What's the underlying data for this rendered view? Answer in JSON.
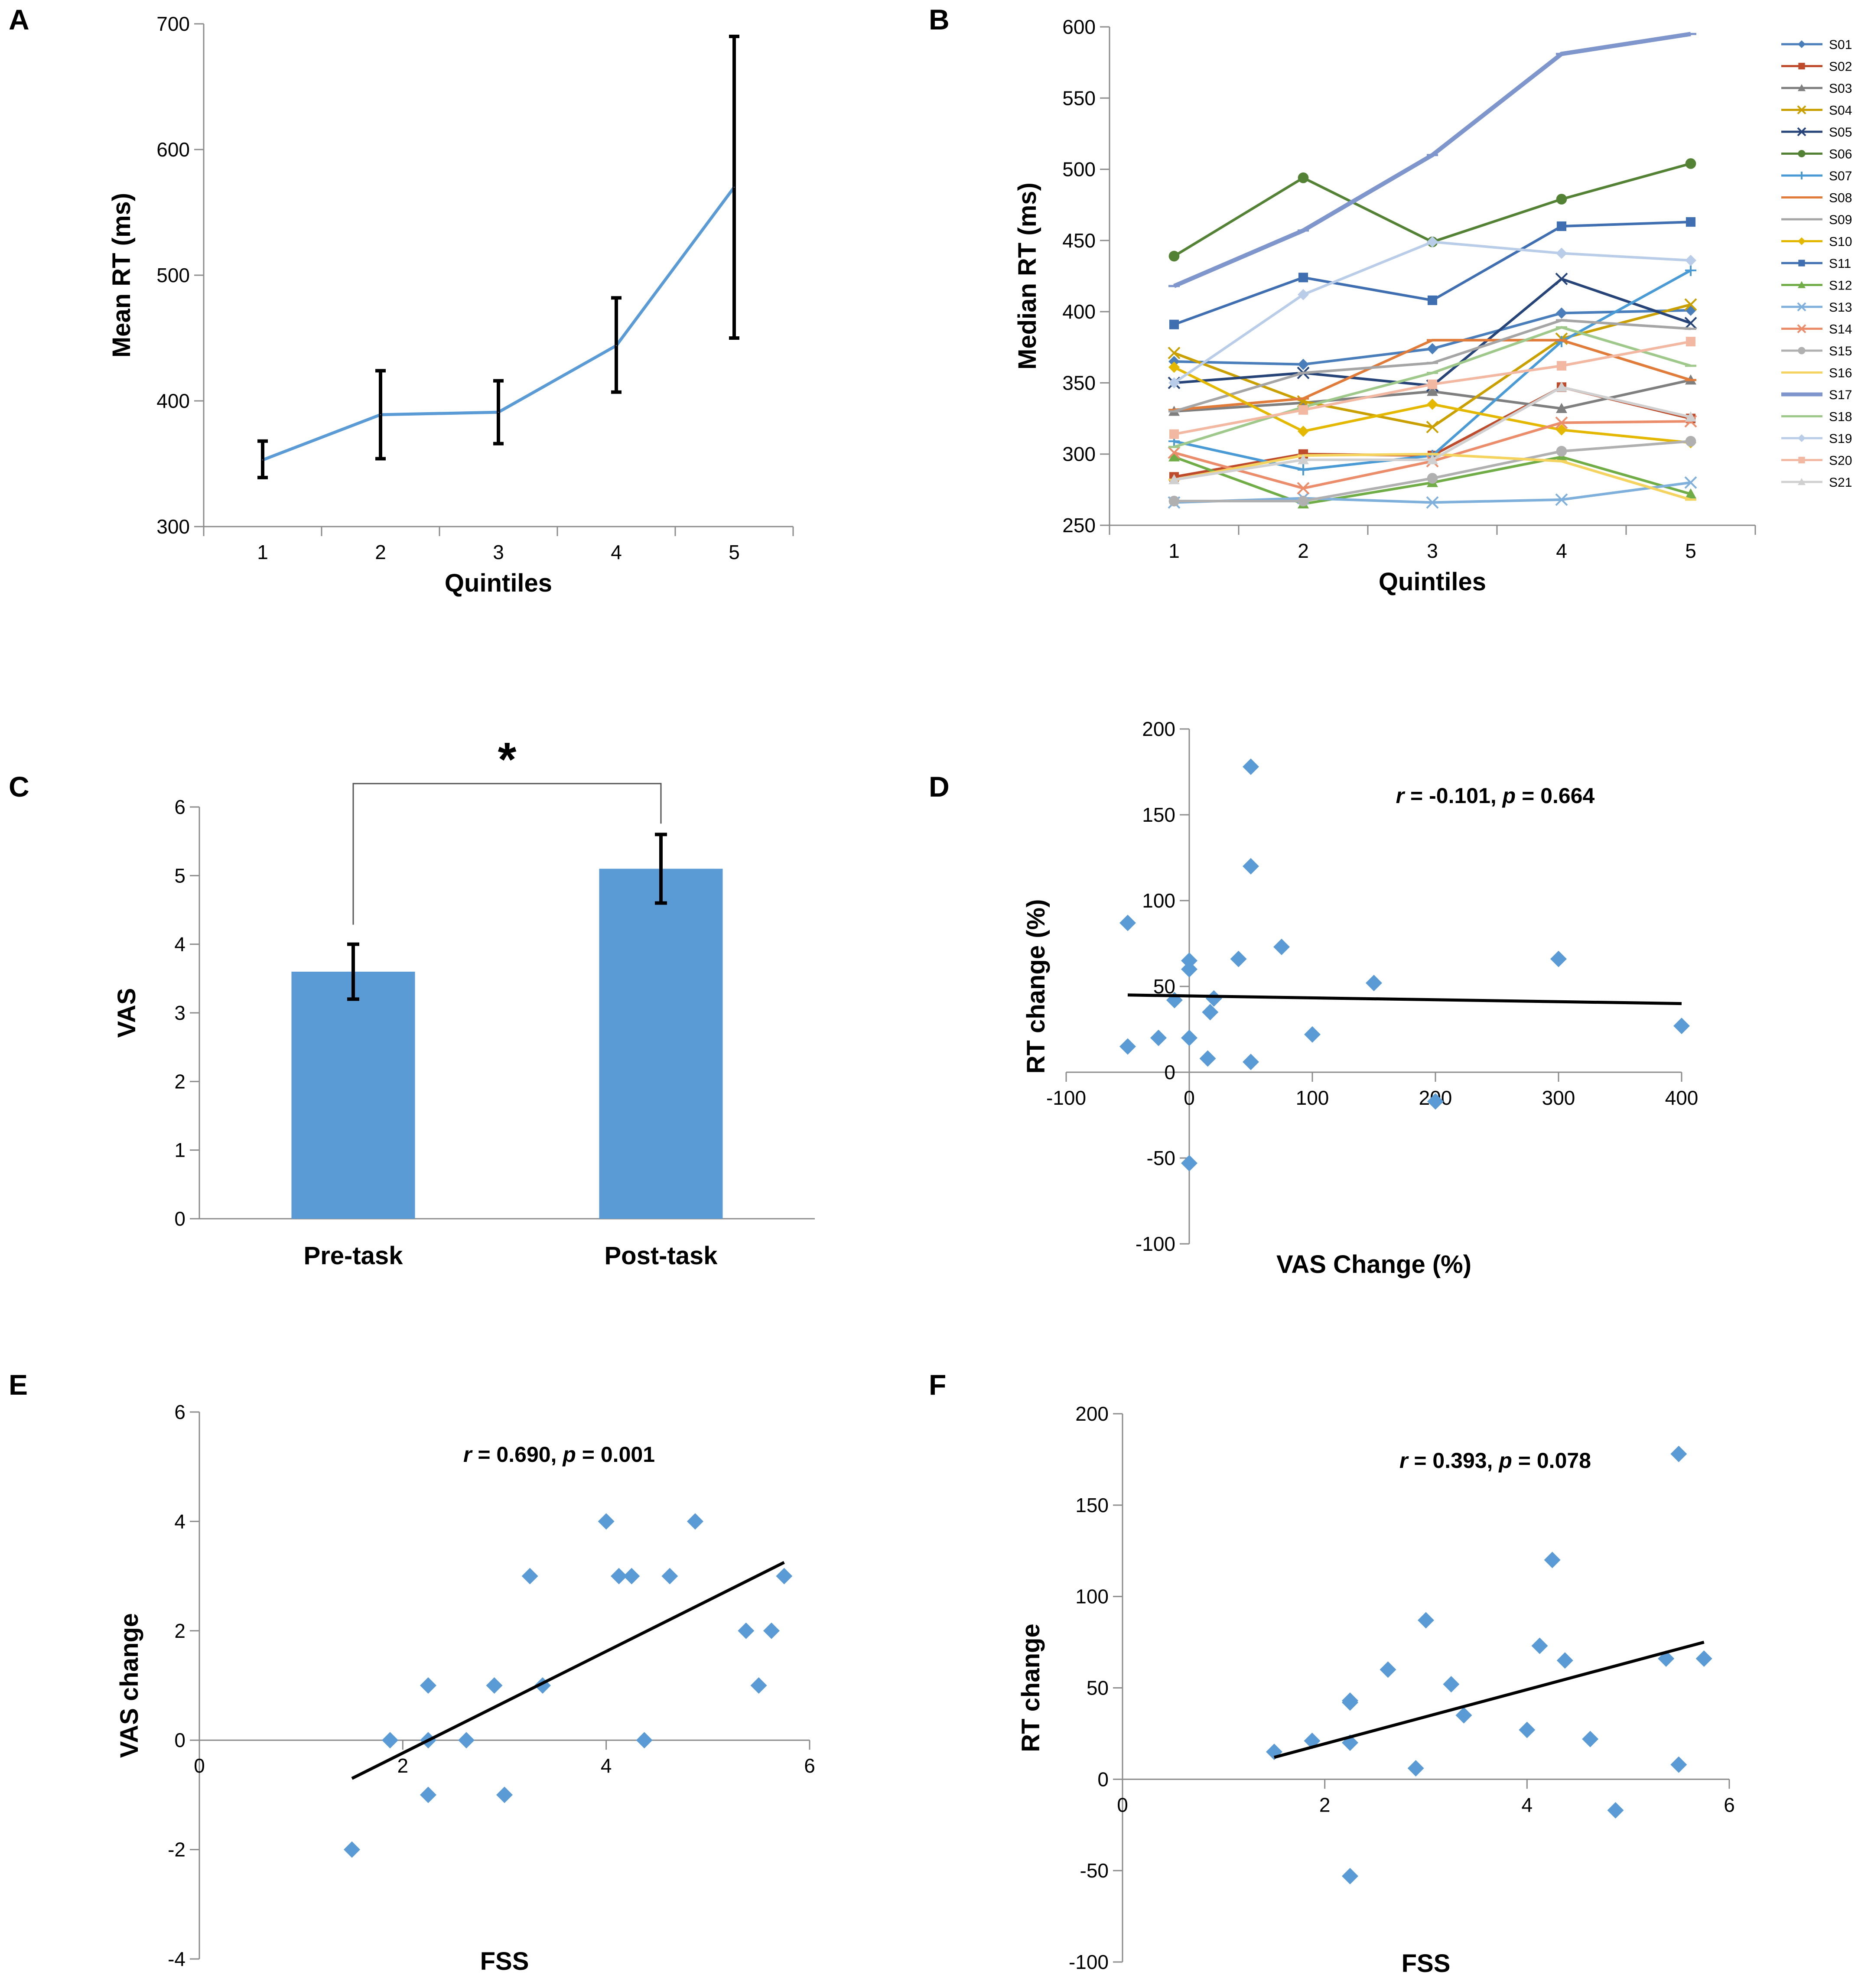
{
  "chart_data": [
    {
      "panel": "A",
      "type": "line",
      "xlabel": "Quintiles",
      "ylabel": "Mean RT (ms)",
      "categories": [
        "1",
        "2",
        "3",
        "4",
        "5"
      ],
      "ylim": [
        300,
        700
      ],
      "yticks": [
        300,
        400,
        500,
        600,
        700
      ],
      "series": [
        {
          "name": "Mean RT",
          "color": "#5b9bd5",
          "values": [
            353,
            389,
            391,
            444,
            570
          ],
          "err_low": [
            339,
            354,
            366,
            407,
            450
          ],
          "err_high": [
            368,
            424,
            416,
            482,
            690
          ]
        }
      ]
    },
    {
      "panel": "B",
      "type": "line",
      "xlabel": "Quintiles",
      "ylabel": "Median RT (ms)",
      "categories": [
        "1",
        "2",
        "3",
        "4",
        "5"
      ],
      "ylim": [
        250,
        600
      ],
      "yticks": [
        250,
        300,
        350,
        400,
        450,
        500,
        550,
        600
      ],
      "legend_position": "right",
      "series": [
        {
          "name": "S01",
          "color": "#4a7ebb",
          "marker": "diamond",
          "values": [
            365,
            363,
            374,
            399,
            401
          ]
        },
        {
          "name": "S02",
          "color": "#be4b2b",
          "marker": "square",
          "values": [
            284,
            300,
            299,
            347,
            325
          ]
        },
        {
          "name": "S03",
          "color": "#7f7f7f",
          "marker": "triangle",
          "values": [
            330,
            336,
            344,
            332,
            352
          ]
        },
        {
          "name": "S04",
          "color": "#c9a000",
          "marker": "x",
          "values": [
            371,
            337,
            319,
            381,
            405
          ]
        },
        {
          "name": "S05",
          "color": "#264478",
          "marker": "x",
          "values": [
            350,
            357,
            348,
            423,
            392
          ]
        },
        {
          "name": "S06",
          "color": "#548235",
          "marker": "circle",
          "values": [
            439,
            494,
            449,
            479,
            504
          ]
        },
        {
          "name": "S07",
          "color": "#4a9bd5",
          "marker": "plus",
          "values": [
            309,
            289,
            299,
            379,
            429
          ]
        },
        {
          "name": "S08",
          "color": "#e07b39",
          "marker": "dash",
          "values": [
            331,
            339,
            380,
            380,
            352
          ]
        },
        {
          "name": "S09",
          "color": "#a5a5a5",
          "marker": "dash",
          "values": [
            330,
            357,
            364,
            394,
            388
          ]
        },
        {
          "name": "S10",
          "color": "#e5b800",
          "marker": "diamond",
          "values": [
            361,
            316,
            335,
            317,
            308
          ]
        },
        {
          "name": "S11",
          "color": "#3f6fb0",
          "marker": "square",
          "values": [
            391,
            424,
            408,
            460,
            463
          ]
        },
        {
          "name": "S12",
          "color": "#70ad47",
          "marker": "triangle",
          "values": [
            298,
            265,
            280,
            298,
            272
          ]
        },
        {
          "name": "S13",
          "color": "#7fb0db",
          "marker": "x",
          "values": [
            266,
            269,
            266,
            268,
            280
          ]
        },
        {
          "name": "S14",
          "color": "#eb8c6b",
          "marker": "x",
          "values": [
            301,
            276,
            295,
            322,
            323
          ]
        },
        {
          "name": "S15",
          "color": "#b0b0b0",
          "marker": "circle",
          "values": [
            267,
            267,
            283,
            302,
            309
          ]
        },
        {
          "name": "S16",
          "color": "#f5d35f",
          "marker": "dash",
          "values": [
            282,
            299,
            300,
            295,
            268
          ]
        },
        {
          "name": "S17",
          "color": "#7f96cc",
          "marker": "dash",
          "thick": true,
          "values": [
            418,
            457,
            510,
            581,
            595
          ]
        },
        {
          "name": "S18",
          "color": "#9fc98a",
          "marker": "dash",
          "values": [
            305,
            333,
            357,
            389,
            362
          ]
        },
        {
          "name": "S19",
          "color": "#b9cde8",
          "marker": "diamond",
          "values": [
            350,
            412,
            449,
            441,
            436
          ]
        },
        {
          "name": "S20",
          "color": "#f2b8a2",
          "marker": "square",
          "values": [
            314,
            331,
            349,
            362,
            379
          ]
        },
        {
          "name": "S21",
          "color": "#d0d0d0",
          "marker": "triangle",
          "values": [
            282,
            296,
            296,
            347,
            326
          ]
        }
      ]
    },
    {
      "panel": "C",
      "type": "bar",
      "ylabel": "VAS",
      "categories": [
        "Pre-task",
        "Post-task"
      ],
      "values": [
        3.6,
        5.1
      ],
      "err_low": [
        3.2,
        4.6
      ],
      "err_high": [
        4.0,
        5.6
      ],
      "ylim": [
        0,
        6
      ],
      "yticks": [
        0,
        1,
        2,
        3,
        4,
        5,
        6
      ],
      "color": "#5b9bd5",
      "significance": "*"
    },
    {
      "panel": "D",
      "type": "scatter",
      "xlabel": "VAS Change (%)",
      "ylabel": "RT change (%)",
      "annotation": {
        "r": "-0.101",
        "p": "0.664"
      },
      "xlim": [
        -100,
        400
      ],
      "ylim": [
        -100,
        200
      ],
      "xticks": [
        -100,
        0,
        100,
        200,
        300,
        400
      ],
      "yticks": [
        -100,
        -50,
        0,
        50,
        100,
        150,
        200
      ],
      "color": "#5b9bd5",
      "points": [
        [
          -50,
          87
        ],
        [
          -50,
          15
        ],
        [
          -25,
          20
        ],
        [
          -12,
          42
        ],
        [
          0,
          65
        ],
        [
          0,
          60
        ],
        [
          0,
          20
        ],
        [
          0,
          -53
        ],
        [
          15,
          8
        ],
        [
          17,
          35
        ],
        [
          20,
          43
        ],
        [
          40,
          66
        ],
        [
          50,
          178
        ],
        [
          50,
          120
        ],
        [
          50,
          6
        ],
        [
          75,
          73
        ],
        [
          100,
          22
        ],
        [
          150,
          52
        ],
        [
          200,
          -17
        ],
        [
          300,
          66
        ],
        [
          400,
          27
        ]
      ],
      "trendline": [
        [
          -50,
          45
        ],
        [
          400,
          40
        ]
      ]
    },
    {
      "panel": "E",
      "type": "scatter",
      "xlabel": "FSS",
      "ylabel": "VAS change",
      "annotation": {
        "r": "0.690",
        "p": "0.001"
      },
      "xlim": [
        0,
        6
      ],
      "ylim": [
        -4,
        6
      ],
      "xticks": [
        0,
        2,
        4,
        6
      ],
      "yticks": [
        -4,
        -2,
        0,
        2,
        4,
        6
      ],
      "color": "#5b9bd5",
      "points": [
        [
          1.5,
          -2
        ],
        [
          1.875,
          0
        ],
        [
          2.25,
          0
        ],
        [
          2.25,
          1
        ],
        [
          2.25,
          -1
        ],
        [
          2.625,
          0
        ],
        [
          2.9,
          1
        ],
        [
          3.0,
          -1
        ],
        [
          3.25,
          3
        ],
        [
          3.375,
          1
        ],
        [
          4.0,
          4
        ],
        [
          4.125,
          3
        ],
        [
          4.25,
          3
        ],
        [
          4.375,
          0
        ],
        [
          4.625,
          3
        ],
        [
          4.875,
          4
        ],
        [
          5.375,
          2
        ],
        [
          5.5,
          1
        ],
        [
          5.625,
          2
        ],
        [
          5.75,
          3
        ]
      ],
      "trendline": [
        [
          1.5,
          -0.7
        ],
        [
          5.75,
          3.25
        ]
      ]
    },
    {
      "panel": "F",
      "type": "scatter",
      "xlabel": "FSS",
      "ylabel": "RT change",
      "annotation": {
        "r": "0.393",
        "p": "0.078"
      },
      "xlim": [
        0,
        6
      ],
      "ylim": [
        -100,
        200
      ],
      "xticks": [
        0,
        2,
        4,
        6
      ],
      "yticks": [
        -100,
        -50,
        0,
        50,
        100,
        150,
        200
      ],
      "color": "#5b9bd5",
      "points": [
        [
          1.5,
          15
        ],
        [
          1.875,
          21
        ],
        [
          2.25,
          43
        ],
        [
          2.25,
          42
        ],
        [
          2.25,
          20
        ],
        [
          2.25,
          -53
        ],
        [
          2.625,
          60
        ],
        [
          2.9,
          6
        ],
        [
          3.0,
          87
        ],
        [
          3.25,
          52
        ],
        [
          3.375,
          35
        ],
        [
          4.0,
          27
        ],
        [
          4.125,
          73
        ],
        [
          4.25,
          120
        ],
        [
          4.375,
          65
        ],
        [
          4.625,
          22
        ],
        [
          4.875,
          -17
        ],
        [
          5.375,
          66
        ],
        [
          5.5,
          8
        ],
        [
          5.5,
          178
        ],
        [
          5.75,
          66
        ]
      ],
      "trendline": [
        [
          1.5,
          12
        ],
        [
          5.75,
          75
        ]
      ]
    }
  ]
}
